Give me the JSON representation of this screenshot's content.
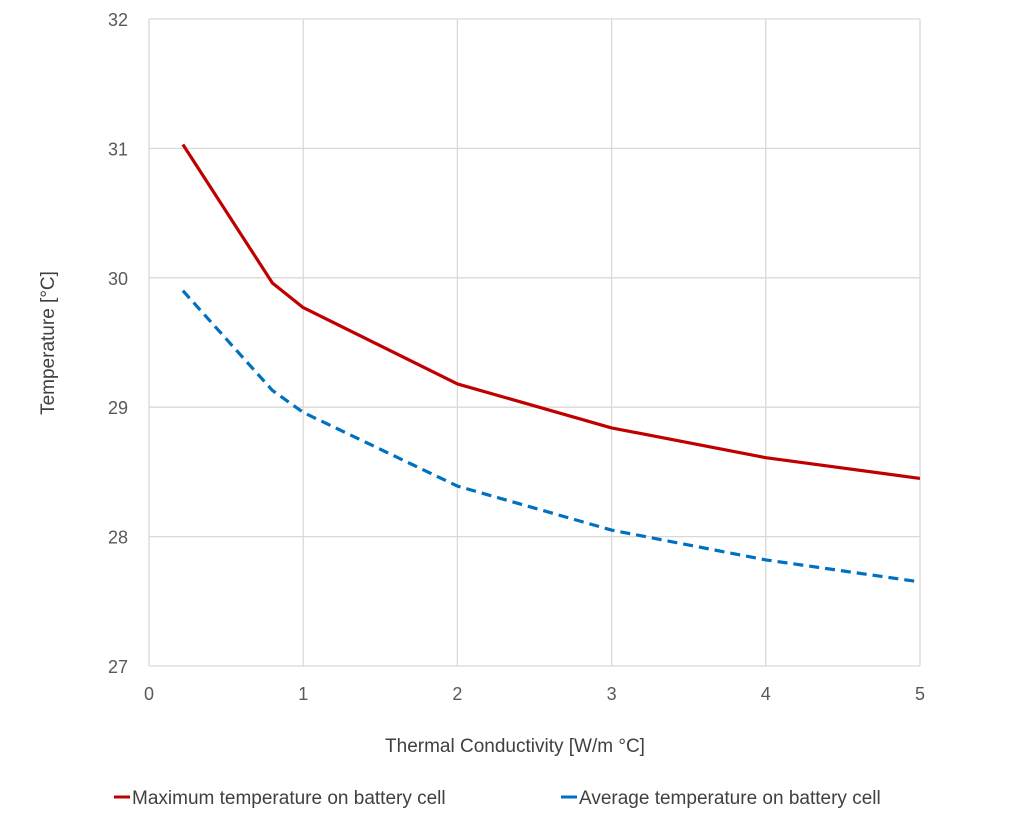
{
  "chart_data": {
    "type": "line",
    "title": "",
    "xlabel": "Thermal Conductivity [W/m °C]",
    "ylabel": "Temperature [°C]",
    "xlim": [
      0,
      5
    ],
    "ylim": [
      27,
      32
    ],
    "xticks": [
      "0",
      "1",
      "2",
      "3",
      "4",
      "5"
    ],
    "yticks": [
      "27",
      "28",
      "29",
      "30",
      "31",
      "32"
    ],
    "grid": true,
    "legend_position": "bottom",
    "series": [
      {
        "name": "Maximum temperature on battery cell",
        "color": "#C00000",
        "style": "solid",
        "x": [
          0.22,
          0.8,
          1,
          2,
          3,
          4,
          5
        ],
        "y": [
          31.03,
          29.96,
          29.77,
          29.18,
          28.84,
          28.61,
          28.45
        ]
      },
      {
        "name": "Average temperature on battery cell",
        "color": "#0070C0",
        "style": "dashed",
        "x": [
          0.22,
          0.8,
          1,
          2,
          3,
          4,
          5
        ],
        "y": [
          29.9,
          29.13,
          28.96,
          28.39,
          28.05,
          27.82,
          27.65
        ]
      }
    ]
  }
}
